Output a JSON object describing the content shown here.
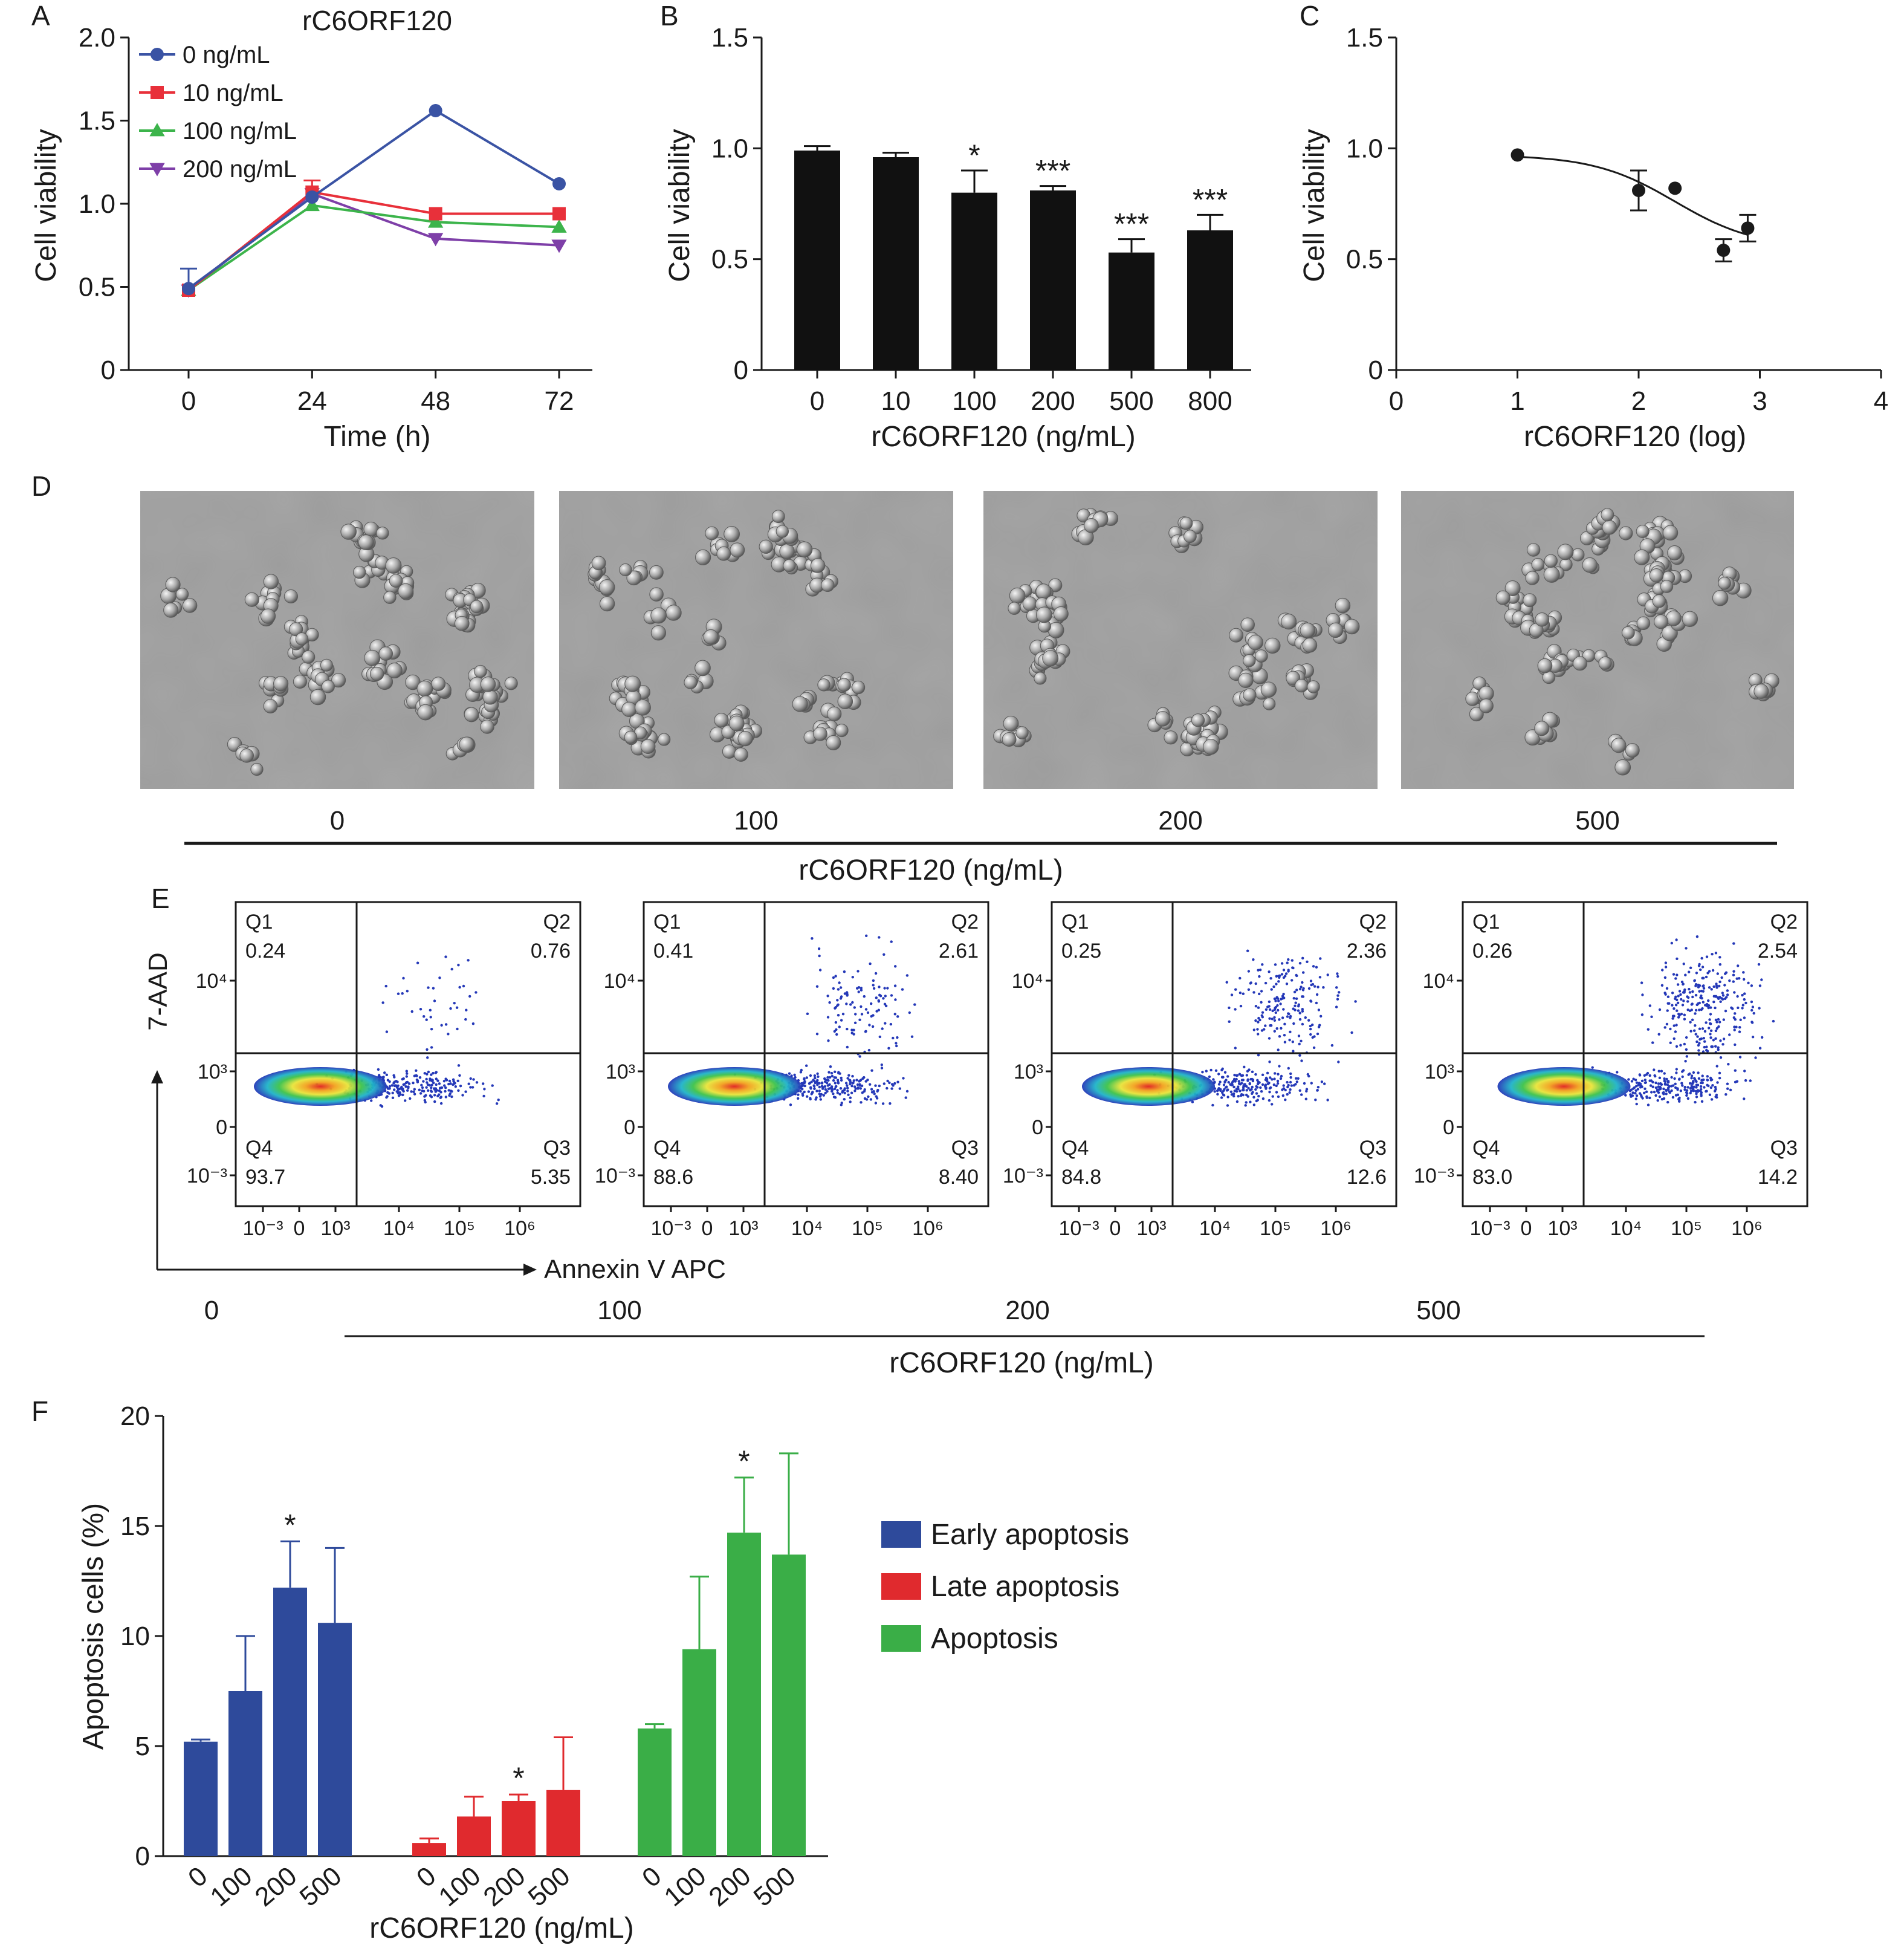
{
  "panels": {
    "A": {
      "letter": "A",
      "chart_data": {
        "type": "line",
        "title": "rC6ORF120",
        "xlabel": "Time (h)",
        "ylabel": "Cell viability",
        "x": [
          0,
          24,
          48,
          72
        ],
        "x_ticks": [
          "0",
          "24",
          "48",
          "72"
        ],
        "y_ticks": [
          "0",
          "0.5",
          "1.0",
          "1.5",
          "2.0"
        ],
        "ylim": [
          0,
          2.0
        ],
        "legend_position": "top-left",
        "series": [
          {
            "name": "0 ng/mL",
            "color": "#3a53a4",
            "marker": "circle",
            "values": [
              0.49,
              1.04,
              1.56,
              1.12
            ],
            "err": [
              0.12,
              0,
              0,
              0
            ]
          },
          {
            "name": "10 ng/mL",
            "color": "#e8303a",
            "marker": "square",
            "values": [
              0.48,
              1.07,
              0.94,
              0.94
            ],
            "err": [
              0,
              0.07,
              0,
              0
            ]
          },
          {
            "name": "100 ng/mL",
            "color": "#3cb44b",
            "marker": "triangle-up",
            "values": [
              0.48,
              0.99,
              0.89,
              0.86
            ],
            "err": [
              0,
              0,
              0,
              0
            ]
          },
          {
            "name": "200 ng/mL",
            "color": "#7e3fa8",
            "marker": "triangle-down",
            "values": [
              0.48,
              1.06,
              0.79,
              0.75
            ],
            "err": [
              0,
              0,
              0,
              0
            ]
          }
        ]
      }
    },
    "B": {
      "letter": "B",
      "chart_data": {
        "type": "bar",
        "xlabel": "rC6ORF120 (ng/mL)",
        "ylabel": "Cell viability",
        "categories": [
          "0",
          "10",
          "100",
          "200",
          "500",
          "800"
        ],
        "values": [
          0.99,
          0.96,
          0.8,
          0.81,
          0.53,
          0.63
        ],
        "err": [
          0.02,
          0.02,
          0.1,
          0.02,
          0.06,
          0.07
        ],
        "annotations": [
          "",
          "",
          "*",
          "***",
          "***",
          "***"
        ],
        "y_ticks": [
          "0",
          "0.5",
          "1.0",
          "1.5"
        ],
        "ylim": [
          0,
          1.5
        ],
        "color": "#111111"
      }
    },
    "C": {
      "letter": "C",
      "chart_data": {
        "type": "scatter",
        "xlabel": "rC6ORF120 (log)",
        "ylabel": "Cell viability",
        "points": [
          {
            "x": 1.0,
            "y": 0.97,
            "err": 0
          },
          {
            "x": 2.0,
            "y": 0.81,
            "err": 0.09
          },
          {
            "x": 2.3,
            "y": 0.82,
            "err": 0
          },
          {
            "x": 2.7,
            "y": 0.54,
            "err": 0.05
          },
          {
            "x": 2.9,
            "y": 0.64,
            "err": 0.06
          }
        ],
        "fit_curve": {
          "top": 0.97,
          "bottom": 0.55,
          "log_ic50": 2.3,
          "hill": 1.3
        },
        "x_ticks": [
          "0",
          "1",
          "2",
          "3",
          "4"
        ],
        "y_ticks": [
          "0",
          "0.5",
          "1.0",
          "1.5"
        ],
        "xlim": [
          0,
          4
        ],
        "ylim": [
          0,
          1.5
        ]
      }
    },
    "D": {
      "letter": "D",
      "labels": [
        "0",
        "100",
        "200",
        "500"
      ],
      "xlabel": "rC6ORF120 (ng/mL)"
    },
    "E": {
      "letter": "E",
      "y_axis_label": "7-AAD",
      "x_axis_label": "Annexin V APC",
      "group_label": "rC6ORF120 (ng/mL)",
      "x_ticks": [
        "10⁻³",
        "0",
        "10³",
        "10⁴",
        "10⁵",
        "10⁶"
      ],
      "y_ticks": [
        "10⁴",
        "10³",
        "0",
        "10⁻³"
      ],
      "plots": [
        {
          "dose": "0",
          "q1": "0.24",
          "q2": "0.76",
          "q3": "5.35",
          "q4": "93.7"
        },
        {
          "dose": "100",
          "q1": "0.41",
          "q2": "2.61",
          "q3": "8.40",
          "q4": "88.6"
        },
        {
          "dose": "200",
          "q1": "0.25",
          "q2": "2.36",
          "q3": "12.6",
          "q4": "84.8"
        },
        {
          "dose": "500",
          "q1": "0.26",
          "q2": "2.54",
          "q3": "14.2",
          "q4": "83.0"
        }
      ],
      "quadrant_names": {
        "q1": "Q1",
        "q2": "Q2",
        "q3": "Q3",
        "q4": "Q4"
      }
    },
    "F": {
      "letter": "F",
      "chart_data": {
        "type": "bar",
        "xlabel": "rC6ORF120 (ng/mL)",
        "ylabel": "Apoptosis cells (%)",
        "categories": [
          "0",
          "100",
          "200",
          "500"
        ],
        "y_ticks": [
          "0",
          "5",
          "10",
          "15",
          "20"
        ],
        "ylim": [
          0,
          20
        ],
        "legend_position": "right",
        "series": [
          {
            "name": "Early apoptosis",
            "color": "#2e4a9b",
            "values": [
              5.2,
              7.5,
              12.2,
              10.6
            ],
            "err": [
              0.1,
              2.5,
              2.1,
              3.4
            ],
            "annotations": [
              "",
              "",
              "*",
              ""
            ]
          },
          {
            "name": "Late apoptosis",
            "color": "#e02a2e",
            "values": [
              0.6,
              1.8,
              2.5,
              3.0
            ],
            "err": [
              0.2,
              0.9,
              0.3,
              2.4
            ],
            "annotations": [
              "",
              "",
              "*",
              ""
            ]
          },
          {
            "name": "Apoptosis",
            "color": "#3aae47",
            "values": [
              5.8,
              9.4,
              14.7,
              13.7
            ],
            "err": [
              0.2,
              3.3,
              2.5,
              4.6
            ],
            "annotations": [
              "",
              "",
              "*",
              ""
            ]
          }
        ]
      }
    }
  }
}
